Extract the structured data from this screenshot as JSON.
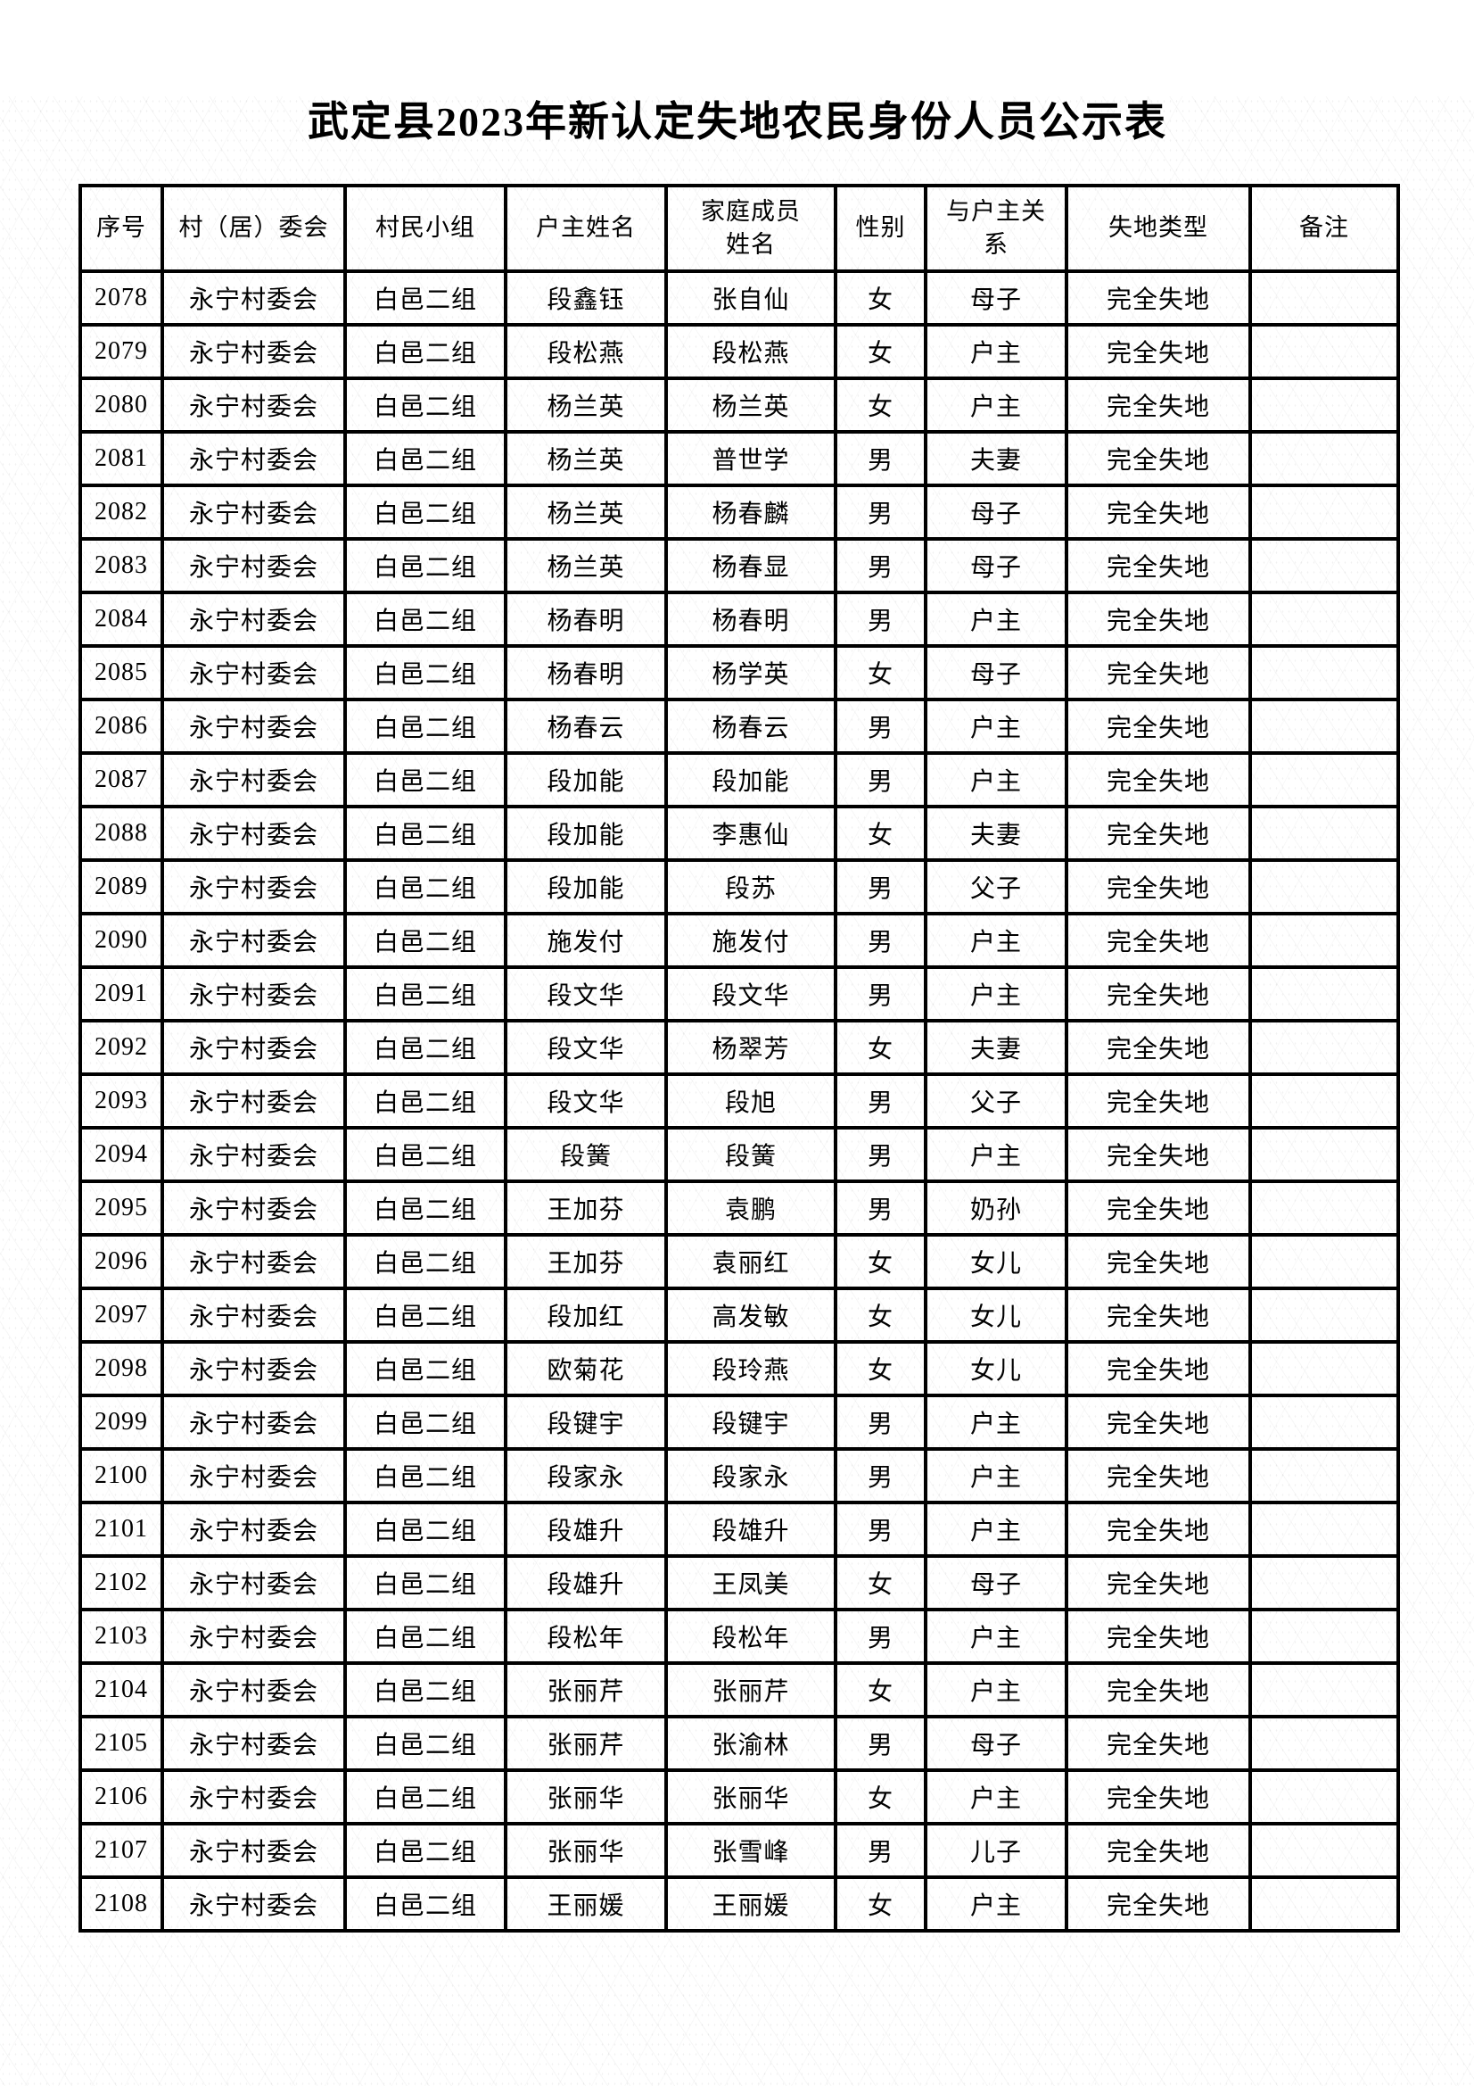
{
  "page": {
    "title": "武定县2023年新认定失地农民身份人员公示表"
  },
  "table": {
    "columns": [
      "序号",
      "村（居）委会",
      "村民小组",
      "户主姓名",
      "家庭成员\n姓名",
      "性别",
      "与户主关\n系",
      "失地类型",
      "备注"
    ],
    "rows": [
      [
        "2078",
        "永宁村委会",
        "白邑二组",
        "段鑫钰",
        "张自仙",
        "女",
        "母子",
        "完全失地",
        ""
      ],
      [
        "2079",
        "永宁村委会",
        "白邑二组",
        "段松燕",
        "段松燕",
        "女",
        "户主",
        "完全失地",
        ""
      ],
      [
        "2080",
        "永宁村委会",
        "白邑二组",
        "杨兰英",
        "杨兰英",
        "女",
        "户主",
        "完全失地",
        ""
      ],
      [
        "2081",
        "永宁村委会",
        "白邑二组",
        "杨兰英",
        "普世学",
        "男",
        "夫妻",
        "完全失地",
        ""
      ],
      [
        "2082",
        "永宁村委会",
        "白邑二组",
        "杨兰英",
        "杨春麟",
        "男",
        "母子",
        "完全失地",
        ""
      ],
      [
        "2083",
        "永宁村委会",
        "白邑二组",
        "杨兰英",
        "杨春显",
        "男",
        "母子",
        "完全失地",
        ""
      ],
      [
        "2084",
        "永宁村委会",
        "白邑二组",
        "杨春明",
        "杨春明",
        "男",
        "户主",
        "完全失地",
        ""
      ],
      [
        "2085",
        "永宁村委会",
        "白邑二组",
        "杨春明",
        "杨学英",
        "女",
        "母子",
        "完全失地",
        ""
      ],
      [
        "2086",
        "永宁村委会",
        "白邑二组",
        "杨春云",
        "杨春云",
        "男",
        "户主",
        "完全失地",
        ""
      ],
      [
        "2087",
        "永宁村委会",
        "白邑二组",
        "段加能",
        "段加能",
        "男",
        "户主",
        "完全失地",
        ""
      ],
      [
        "2088",
        "永宁村委会",
        "白邑二组",
        "段加能",
        "李惠仙",
        "女",
        "夫妻",
        "完全失地",
        ""
      ],
      [
        "2089",
        "永宁村委会",
        "白邑二组",
        "段加能",
        "段苏",
        "男",
        "父子",
        "完全失地",
        ""
      ],
      [
        "2090",
        "永宁村委会",
        "白邑二组",
        "施发付",
        "施发付",
        "男",
        "户主",
        "完全失地",
        ""
      ],
      [
        "2091",
        "永宁村委会",
        "白邑二组",
        "段文华",
        "段文华",
        "男",
        "户主",
        "完全失地",
        ""
      ],
      [
        "2092",
        "永宁村委会",
        "白邑二组",
        "段文华",
        "杨翠芳",
        "女",
        "夫妻",
        "完全失地",
        ""
      ],
      [
        "2093",
        "永宁村委会",
        "白邑二组",
        "段文华",
        "段旭",
        "男",
        "父子",
        "完全失地",
        ""
      ],
      [
        "2094",
        "永宁村委会",
        "白邑二组",
        "段簧",
        "段簧",
        "男",
        "户主",
        "完全失地",
        ""
      ],
      [
        "2095",
        "永宁村委会",
        "白邑二组",
        "王加芬",
        "袁鹏",
        "男",
        "奶孙",
        "完全失地",
        ""
      ],
      [
        "2096",
        "永宁村委会",
        "白邑二组",
        "王加芬",
        "袁丽红",
        "女",
        "女儿",
        "完全失地",
        ""
      ],
      [
        "2097",
        "永宁村委会",
        "白邑二组",
        "段加红",
        "高发敏",
        "女",
        "女儿",
        "完全失地",
        ""
      ],
      [
        "2098",
        "永宁村委会",
        "白邑二组",
        "欧菊花",
        "段玲燕",
        "女",
        "女儿",
        "完全失地",
        ""
      ],
      [
        "2099",
        "永宁村委会",
        "白邑二组",
        "段键宇",
        "段键宇",
        "男",
        "户主",
        "完全失地",
        ""
      ],
      [
        "2100",
        "永宁村委会",
        "白邑二组",
        "段家永",
        "段家永",
        "男",
        "户主",
        "完全失地",
        ""
      ],
      [
        "2101",
        "永宁村委会",
        "白邑二组",
        "段雄升",
        "段雄升",
        "男",
        "户主",
        "完全失地",
        ""
      ],
      [
        "2102",
        "永宁村委会",
        "白邑二组",
        "段雄升",
        "王凤美",
        "女",
        "母子",
        "完全失地",
        ""
      ],
      [
        "2103",
        "永宁村委会",
        "白邑二组",
        "段松年",
        "段松年",
        "男",
        "户主",
        "完全失地",
        ""
      ],
      [
        "2104",
        "永宁村委会",
        "白邑二组",
        "张丽芹",
        "张丽芹",
        "女",
        "户主",
        "完全失地",
        ""
      ],
      [
        "2105",
        "永宁村委会",
        "白邑二组",
        "张丽芹",
        "张渝林",
        "男",
        "母子",
        "完全失地",
        ""
      ],
      [
        "2106",
        "永宁村委会",
        "白邑二组",
        "张丽华",
        "张丽华",
        "女",
        "户主",
        "完全失地",
        ""
      ],
      [
        "2107",
        "永宁村委会",
        "白邑二组",
        "张丽华",
        "张雪峰",
        "男",
        "儿子",
        "完全失地",
        ""
      ],
      [
        "2108",
        "永宁村委会",
        "白邑二组",
        "王丽媛",
        "王丽媛",
        "女",
        "户主",
        "完全失地",
        ""
      ]
    ]
  }
}
